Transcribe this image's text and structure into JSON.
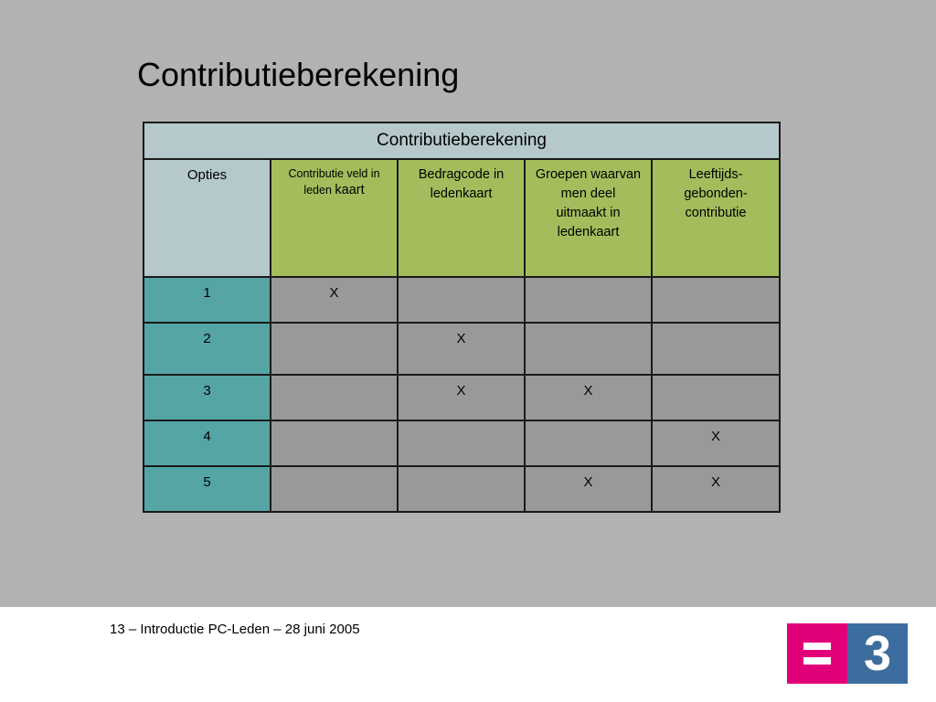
{
  "slide": {
    "title": "Contributieberekening"
  },
  "table": {
    "caption": "Contributieberekening",
    "headers": {
      "opties": "Opties",
      "col1_part1": "Contributie veld in leden",
      "col1_part2": "kaart",
      "col2": "Bedragcode in ledenkaart",
      "col3": "Groepen waarvan men deel uitmaakt in ledenkaart",
      "col4": "Leeftijds-gebonden-contributie"
    },
    "rows": [
      {
        "option": "1",
        "c1": "X",
        "c2": "",
        "c3": "",
        "c4": ""
      },
      {
        "option": "2",
        "c1": "",
        "c2": "X",
        "c3": "",
        "c4": ""
      },
      {
        "option": "3",
        "c1": "",
        "c2": "X",
        "c3": "X",
        "c4": ""
      },
      {
        "option": "4",
        "c1": "",
        "c2": "",
        "c3": "",
        "c4": "X"
      },
      {
        "option": "5",
        "c1": "",
        "c2": "",
        "c3": "X",
        "c4": "X"
      }
    ]
  },
  "footer": {
    "text": "13 – Introductie PC-Leden – 28 juni 2005"
  },
  "logo": {
    "symbol": "3",
    "colors": {
      "pink": "#e2007a",
      "blue": "#3d6d9e"
    }
  },
  "colors": {
    "slide_bg": "#b2b2b2",
    "header_blue": "#b5c8cc",
    "header_green": "#a4bd5c",
    "option_teal": "#55a5a5",
    "cell_grey": "#999999"
  }
}
